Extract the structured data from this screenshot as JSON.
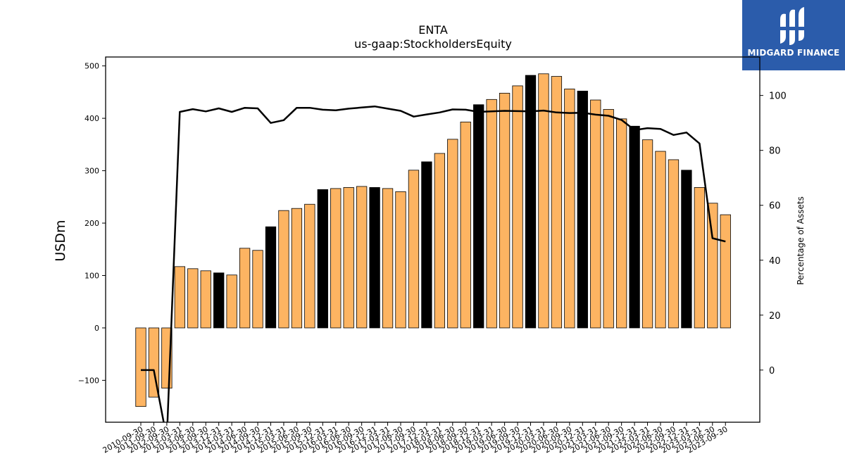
{
  "brand": {
    "name": "MIDGARD FINANCE"
  },
  "colors": {
    "bar_default": "#fdb462",
    "bar_highlight": "#000000",
    "line": "#000000",
    "logo_bg": "#2b5cab"
  },
  "chart_data": {
    "type": "bar",
    "title": "ENTA",
    "subtitle": "us-gaap:StockholdersEquity",
    "ylabel": "USDm",
    "y2label": "Percentage of Assets",
    "ylim": [
      -180,
      517
    ],
    "y2lim": [
      -19,
      114
    ],
    "yticks": [
      -100,
      0,
      100,
      200,
      300,
      400,
      500
    ],
    "y2ticks": [
      0,
      20,
      40,
      60,
      80,
      100
    ],
    "categories": [
      "2010-09-30",
      "2011-09-30",
      "2012-09-30",
      "2013-03-31",
      "2013-06-30",
      "2013-09-30",
      "2013-12-31",
      "2014-03-31",
      "2014-06-30",
      "2014-09-30",
      "2014-12-31",
      "2015-03-31",
      "2015-06-30",
      "2015-09-30",
      "2015-12-31",
      "2016-03-31",
      "2016-06-30",
      "2016-09-30",
      "2016-12-31",
      "2017-03-31",
      "2017-06-30",
      "2017-09-30",
      "2017-12-31",
      "2018-03-31",
      "2018-06-30",
      "2018-09-30",
      "2018-12-31",
      "2019-03-31",
      "2019-06-30",
      "2019-09-30",
      "2019-12-31",
      "2020-03-31",
      "2020-06-30",
      "2020-09-30",
      "2020-12-31",
      "2021-03-31",
      "2021-06-30",
      "2021-09-30",
      "2021-12-31",
      "2022-03-31",
      "2022-06-30",
      "2022-09-30",
      "2022-12-31",
      "2023-03-31",
      "2023-06-30",
      "2023-09-30"
    ],
    "series": [
      {
        "type": "bar",
        "values": [
          -150,
          -132,
          -115,
          117,
          113,
          109,
          105,
          101,
          152,
          148,
          193,
          224,
          228,
          236,
          264,
          266,
          268,
          270,
          268,
          266,
          260,
          301,
          317,
          333,
          360,
          393,
          426,
          436,
          448,
          462,
          482,
          485,
          480,
          456,
          452,
          435,
          417,
          399,
          385,
          359,
          337,
          321,
          301,
          268,
          238,
          216
        ],
        "highlight": [
          false,
          false,
          false,
          false,
          false,
          false,
          true,
          false,
          false,
          false,
          true,
          false,
          false,
          false,
          true,
          false,
          false,
          false,
          true,
          false,
          false,
          false,
          true,
          false,
          false,
          false,
          true,
          false,
          false,
          false,
          true,
          false,
          false,
          false,
          true,
          false,
          false,
          false,
          true,
          false,
          false,
          false,
          true,
          false,
          false,
          false
        ]
      },
      {
        "type": "line",
        "axis": "y2",
        "values": [
          0,
          0,
          -25,
          94,
          95,
          94.2,
          95.3,
          94,
          95.5,
          95.3,
          90,
          91,
          95.5,
          95.5,
          94.8,
          94.6,
          95.2,
          95.6,
          96,
          95.2,
          94.4,
          92.3,
          93.1,
          93.8,
          94.9,
          94.8,
          94,
          94.2,
          94.4,
          94.3,
          94.2,
          94.5,
          93.8,
          93.6,
          93.7,
          93,
          92.6,
          91.1,
          87.4,
          88.1,
          87.8,
          85.6,
          86.5,
          82.5,
          48,
          46.8
        ]
      }
    ]
  }
}
